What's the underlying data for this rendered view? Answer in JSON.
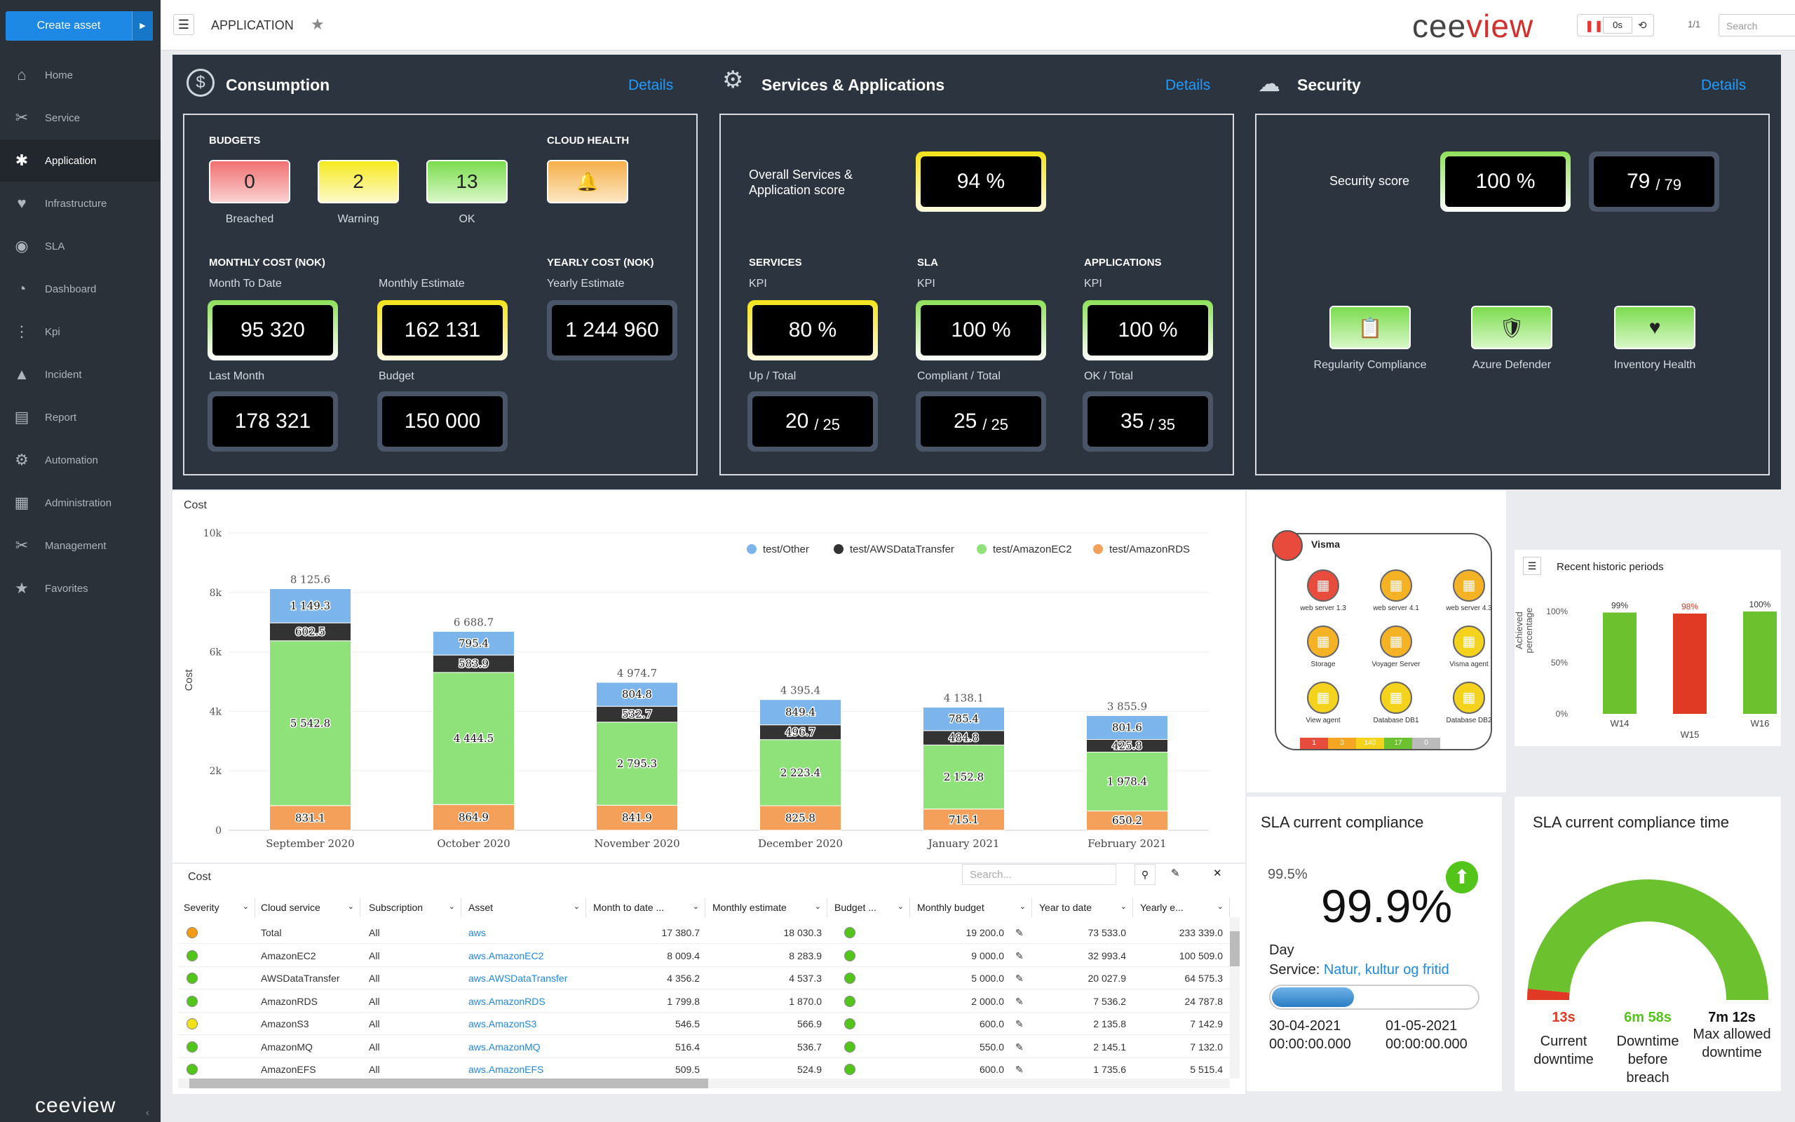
{
  "sidebar": {
    "create": "Create asset",
    "items": [
      "Home",
      "Service",
      "Application",
      "Infrastructure",
      "SLA",
      "Dashboard",
      "Kpi",
      "Incident",
      "Report",
      "Automation",
      "Administration",
      "Management",
      "Favorites"
    ],
    "logo": "ceeview"
  },
  "topbar": {
    "crumb": "APPLICATION",
    "brand_a": "cee",
    "brand_b": "view",
    "refresh": "0s",
    "pager": "1/1",
    "search": "Search"
  },
  "consumption": {
    "title": "Consumption",
    "details": "Details",
    "budgets_label": "BUDGETS",
    "cloud_health_label": "CLOUD HEALTH",
    "breached": "0",
    "breached_label": "Breached",
    "warning": "2",
    "warning_label": "Warning",
    "ok": "13",
    "ok_label": "OK",
    "monthly_cost_label": "MONTHLY COST (NOK)",
    "yearly_cost_label": "YEARLY COST (NOK)",
    "mtd_label": "Month To Date",
    "mtd": "95 320",
    "me_label": "Monthly Estimate",
    "me": "162 131",
    "ye_label": "Yearly Estimate",
    "ye": "1 244 960",
    "lm_label": "Last Month",
    "lm": "178 321",
    "budget_label": "Budget",
    "budget": "150 000"
  },
  "services": {
    "title": "Services & Applications",
    "details": "Details",
    "overall_label": "Overall Services & Application score",
    "overall": "94 %",
    "services_label": "SERVICES",
    "sla_label": "SLA",
    "apps_label": "APPLICATIONS",
    "kpi_label": "KPI",
    "svc_kpi": "80 %",
    "sla_kpi": "100 %",
    "app_kpi": "100 %",
    "up_label": "Up / Total",
    "up": "20",
    "up_total": "/ 25",
    "comp_label": "Compliant / Total",
    "comp": "25",
    "comp_total": "/ 25",
    "ok_label": "OK / Total",
    "okv": "35",
    "ok_total": "/ 35"
  },
  "security": {
    "title": "Security",
    "details": "Details",
    "score_label": "Security score",
    "score": "100 %",
    "count": "79",
    "count_total": "/ 79",
    "reg": "Regularity Compliance",
    "azure": "Azure Defender",
    "inv": "Inventory Health"
  },
  "chart_data": {
    "type": "bar",
    "stacked": true,
    "title": "Cost",
    "ylabel": "Cost",
    "ylim": [
      0,
      10000
    ],
    "yticks": [
      "0",
      "2k",
      "4k",
      "6k",
      "8k",
      "10k"
    ],
    "categories": [
      "September 2020",
      "October 2020",
      "November 2020",
      "December 2020",
      "January 2021",
      "February 2021"
    ],
    "series": [
      {
        "name": "test/AmazonRDS",
        "color": "#f5a05a",
        "values": [
          831.1,
          864.9,
          841.9,
          825.8,
          715.1,
          650.2
        ]
      },
      {
        "name": "test/AmazonEC2",
        "color": "#8fe17a",
        "values": [
          5542.8,
          4444.5,
          2795.3,
          2223.4,
          2152.8,
          1978.4
        ]
      },
      {
        "name": "test/AWSDataTransfer",
        "color": "#333333",
        "values": [
          602.5,
          583.9,
          532.7,
          496.7,
          484.8,
          425.8
        ]
      },
      {
        "name": "test/Other",
        "color": "#7cb5ec",
        "values": [
          1149.3,
          795.4,
          804.8,
          849.4,
          785.4,
          801.6
        ]
      }
    ],
    "totals": [
      "8 125.6",
      "6 688.7",
      "4 974.7",
      "4 395.4",
      "4 138.1",
      "3 855.9"
    ],
    "labels": [
      [
        "831.1",
        "864.9",
        "841.9",
        "825.8",
        "715.1",
        "650.2"
      ],
      [
        "5 542.8",
        "4 444.5",
        "2 795.3",
        "2 223.4",
        "2 152.8",
        "1 978.4"
      ],
      [
        "602.5",
        "583.9",
        "532.7",
        "496.7",
        "484.8",
        "425.8"
      ],
      [
        "1 149.3",
        "795.4",
        "804.8",
        "849.4",
        "785.4",
        "801.6"
      ]
    ],
    "legend": [
      "test/Other",
      "test/AWSDataTransfer",
      "test/AmazonEC2",
      "test/AmazonRDS"
    ]
  },
  "table": {
    "title": "Cost",
    "search": "Search...",
    "headers": [
      "Severity",
      "Cloud service",
      "Subscription",
      "Asset",
      "Month to date ...",
      "Monthly estimate",
      "Budget ...",
      "Monthly budget",
      "Year to date",
      "Yearly e..."
    ],
    "rows": [
      {
        "sev": "#f39c12",
        "svc": "Total",
        "sub": "All",
        "asset": "aws",
        "mtd": "17 380.7",
        "me": "18 030.3",
        "mb": "19 200.0",
        "ytd": "73 533.0",
        "ye": "233 339.0"
      },
      {
        "sev": "#52c41a",
        "svc": "AmazonEC2",
        "sub": "All",
        "asset": "aws.AmazonEC2",
        "mtd": "8 009.4",
        "me": "8 283.9",
        "mb": "9 000.0",
        "ytd": "32 993.4",
        "ye": "100 509.0"
      },
      {
        "sev": "#52c41a",
        "svc": "AWSDataTransfer",
        "sub": "All",
        "asset": "aws.AWSDataTransfer",
        "mtd": "4 356.2",
        "me": "4 537.3",
        "mb": "5 000.0",
        "ytd": "20 027.9",
        "ye": "64 575.3"
      },
      {
        "sev": "#52c41a",
        "svc": "AmazonRDS",
        "sub": "All",
        "asset": "aws.AmazonRDS",
        "mtd": "1 799.8",
        "me": "1 870.0",
        "mb": "2 000.0",
        "ytd": "7 536.2",
        "ye": "24 787.8"
      },
      {
        "sev": "#f2e01b",
        "svc": "AmazonS3",
        "sub": "All",
        "asset": "aws.AmazonS3",
        "mtd": "546.5",
        "me": "566.9",
        "mb": "600.0",
        "ytd": "2 135.8",
        "ye": "7 142.9"
      },
      {
        "sev": "#52c41a",
        "svc": "AmazonMQ",
        "sub": "All",
        "asset": "aws.AmazonMQ",
        "mtd": "516.4",
        "me": "536.7",
        "mb": "550.0",
        "ytd": "2 145.1",
        "ye": "7 132.0"
      },
      {
        "sev": "#52c41a",
        "svc": "AmazonEFS",
        "sub": "All",
        "asset": "aws.AmazonEFS",
        "mtd": "509.5",
        "me": "524.9",
        "mb": "600.0",
        "ytd": "1 735.6",
        "ye": "5 515.4"
      }
    ]
  },
  "visma": {
    "title": "Visma",
    "nodes": [
      {
        "name": "web server 1.3",
        "color": "#e74c3c"
      },
      {
        "name": "web server 4.1",
        "color": "#f5b225"
      },
      {
        "name": "web server 4.3",
        "color": "#f5b225"
      },
      {
        "name": "Storage",
        "color": "#f5b225"
      },
      {
        "name": "Voyager Server",
        "color": "#f5b225"
      },
      {
        "name": "Visma agent",
        "color": "#f5d21b"
      },
      {
        "name": "View agent",
        "color": "#f5d21b"
      },
      {
        "name": "Database DB1",
        "color": "#f5d21b"
      },
      {
        "name": "Database DB2",
        "color": "#f5d21b"
      }
    ],
    "counts": [
      "1",
      "3",
      "140",
      "17",
      "0"
    ]
  },
  "historic": {
    "title": "Recent historic periods",
    "ylabel": "Achieved percentage",
    "yticks": [
      "0%",
      "50%",
      "100%"
    ],
    "bars": [
      {
        "week": "W14",
        "value": 99,
        "label": "99%",
        "color": "#6cc12f"
      },
      {
        "week": "W15",
        "value": 98,
        "label": "98%",
        "color": "#e03a24"
      },
      {
        "week": "W16",
        "value": 100,
        "label": "100%",
        "color": "#6cc12f"
      }
    ]
  },
  "sla": {
    "title": "SLA current compliance",
    "target": "99.5%",
    "value": "99.9%",
    "period": "Day",
    "service_label": "Service:",
    "service": "Natur, kultur og fritid",
    "progress": 0.4,
    "start": "30-04-2021",
    "start_t": "00:00:00.000",
    "end": "01-05-2021",
    "end_t": "00:00:00.000"
  },
  "slatime": {
    "title": "SLA current compliance time",
    "current": "13s",
    "current_label": "Current downtime",
    "before": "6m 58s",
    "before_label": "Downtime before breach",
    "max": "7m 12s",
    "max_label": "Max allowed downtime",
    "used_fraction": 0.03
  }
}
